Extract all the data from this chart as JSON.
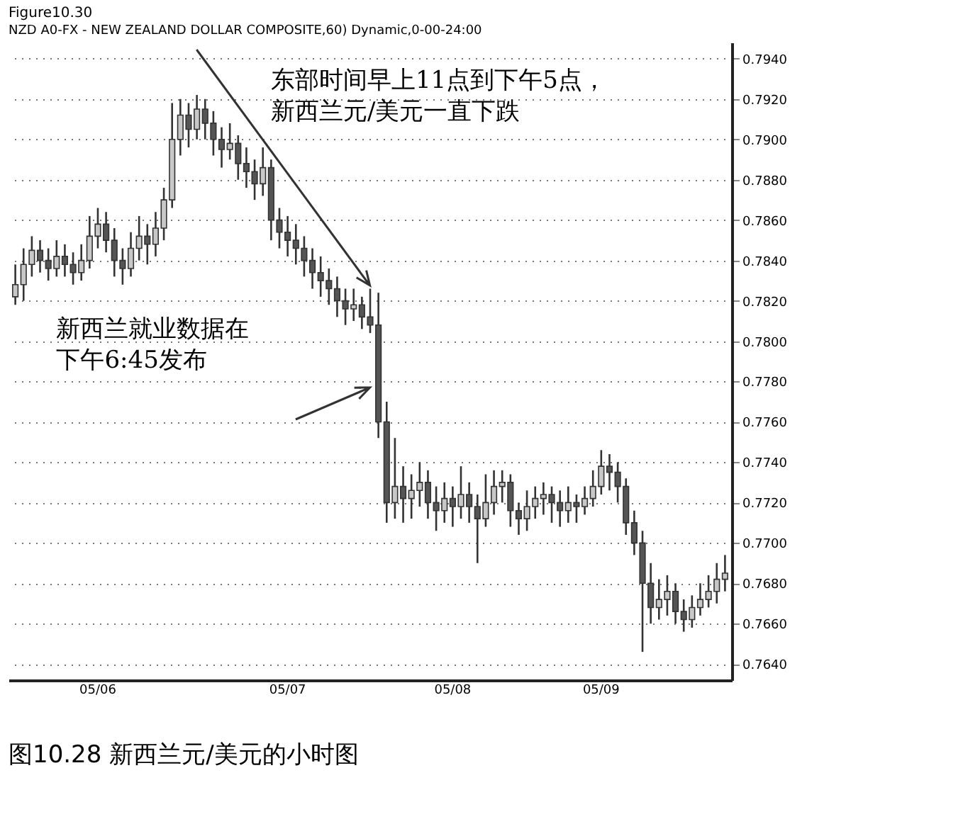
{
  "chart_data": {
    "type": "candlestick",
    "title": "Figure10.30",
    "subtitle": "NZD A0-FX - NEW ZEALAND DOLLAR COMPOSITE,60) Dynamic,0-00-24:00",
    "categories": [
      null,
      null,
      null,
      null,
      null,
      null,
      null,
      null,
      null,
      null,
      "05/06",
      null,
      null,
      null,
      null,
      null,
      null,
      null,
      null,
      null,
      null,
      null,
      null,
      null,
      null,
      null,
      null,
      null,
      null,
      null,
      null,
      null,
      null,
      "05/07",
      null,
      null,
      null,
      null,
      null,
      null,
      null,
      null,
      null,
      null,
      null,
      null,
      null,
      null,
      null,
      null,
      null,
      null,
      null,
      "05/08",
      null,
      null,
      null,
      null,
      null,
      null,
      null,
      null,
      null,
      null,
      null,
      null,
      null,
      null,
      null,
      null,
      null,
      "05/09",
      null,
      null,
      null,
      null,
      null,
      null,
      null,
      null,
      null,
      null,
      null,
      null,
      null,
      null,
      null
    ],
    "ohlc": [
      [
        0.7822,
        0.7838,
        0.7818,
        0.7828
      ],
      [
        0.7828,
        0.7846,
        0.782,
        0.7838
      ],
      [
        0.7838,
        0.7852,
        0.7832,
        0.7845
      ],
      [
        0.7845,
        0.785,
        0.7834,
        0.784
      ],
      [
        0.784,
        0.7846,
        0.783,
        0.7836
      ],
      [
        0.7836,
        0.785,
        0.7832,
        0.7842
      ],
      [
        0.7842,
        0.7848,
        0.7832,
        0.7838
      ],
      [
        0.7838,
        0.7844,
        0.7828,
        0.7834
      ],
      [
        0.7834,
        0.7848,
        0.783,
        0.784
      ],
      [
        0.784,
        0.7862,
        0.7836,
        0.7852
      ],
      [
        0.7852,
        0.7866,
        0.7846,
        0.7858
      ],
      [
        0.7858,
        0.7864,
        0.7844,
        0.785
      ],
      [
        0.785,
        0.7856,
        0.7832,
        0.784
      ],
      [
        0.784,
        0.7846,
        0.7828,
        0.7836
      ],
      [
        0.7836,
        0.7854,
        0.7832,
        0.7846
      ],
      [
        0.7846,
        0.7862,
        0.784,
        0.7852
      ],
      [
        0.7852,
        0.7858,
        0.7838,
        0.7848
      ],
      [
        0.7848,
        0.7864,
        0.7842,
        0.7856
      ],
      [
        0.7856,
        0.7876,
        0.785,
        0.787
      ],
      [
        0.787,
        0.7918,
        0.7866,
        0.79
      ],
      [
        0.79,
        0.792,
        0.7892,
        0.7912
      ],
      [
        0.7912,
        0.7918,
        0.7896,
        0.7905
      ],
      [
        0.7905,
        0.7922,
        0.79,
        0.7915
      ],
      [
        0.7915,
        0.792,
        0.79,
        0.7908
      ],
      [
        0.7908,
        0.7914,
        0.7892,
        0.79
      ],
      [
        0.79,
        0.7906,
        0.7886,
        0.7895
      ],
      [
        0.7895,
        0.7908,
        0.789,
        0.7898
      ],
      [
        0.7898,
        0.7902,
        0.788,
        0.7888
      ],
      [
        0.7888,
        0.7896,
        0.7876,
        0.7884
      ],
      [
        0.7884,
        0.789,
        0.787,
        0.7878
      ],
      [
        0.7878,
        0.7896,
        0.7872,
        0.7886
      ],
      [
        0.7886,
        0.789,
        0.785,
        0.786
      ],
      [
        0.786,
        0.7866,
        0.7846,
        0.7854
      ],
      [
        0.7854,
        0.7862,
        0.7842,
        0.785
      ],
      [
        0.785,
        0.7858,
        0.7838,
        0.7846
      ],
      [
        0.7846,
        0.7852,
        0.7832,
        0.784
      ],
      [
        0.784,
        0.7846,
        0.7826,
        0.7834
      ],
      [
        0.7834,
        0.7842,
        0.7822,
        0.783
      ],
      [
        0.783,
        0.7836,
        0.7818,
        0.7826
      ],
      [
        0.7826,
        0.7832,
        0.7812,
        0.782
      ],
      [
        0.782,
        0.7826,
        0.7808,
        0.7816
      ],
      [
        0.7816,
        0.7826,
        0.781,
        0.7818
      ],
      [
        0.7818,
        0.7822,
        0.7806,
        0.7812
      ],
      [
        0.7812,
        0.7826,
        0.7804,
        0.7808
      ],
      [
        0.7808,
        0.7824,
        0.7752,
        0.776
      ],
      [
        0.776,
        0.777,
        0.771,
        0.772
      ],
      [
        0.772,
        0.7752,
        0.7712,
        0.7728
      ],
      [
        0.7728,
        0.7738,
        0.771,
        0.7722
      ],
      [
        0.7722,
        0.7734,
        0.7712,
        0.7726
      ],
      [
        0.7726,
        0.774,
        0.7718,
        0.773
      ],
      [
        0.773,
        0.7736,
        0.7712,
        0.772
      ],
      [
        0.772,
        0.7728,
        0.7706,
        0.7716
      ],
      [
        0.7716,
        0.773,
        0.771,
        0.7722
      ],
      [
        0.7722,
        0.7728,
        0.7708,
        0.7718
      ],
      [
        0.7718,
        0.7738,
        0.7712,
        0.7724
      ],
      [
        0.7724,
        0.773,
        0.771,
        0.7718
      ],
      [
        0.7718,
        0.7724,
        0.769,
        0.7712
      ],
      [
        0.7712,
        0.7734,
        0.7708,
        0.772
      ],
      [
        0.772,
        0.7736,
        0.7714,
        0.7728
      ],
      [
        0.7728,
        0.7736,
        0.772,
        0.773
      ],
      [
        0.773,
        0.7734,
        0.7708,
        0.7716
      ],
      [
        0.7716,
        0.772,
        0.7704,
        0.7712
      ],
      [
        0.7712,
        0.7726,
        0.7706,
        0.7718
      ],
      [
        0.7718,
        0.7728,
        0.7712,
        0.7722
      ],
      [
        0.7722,
        0.773,
        0.7714,
        0.7724
      ],
      [
        0.7724,
        0.7728,
        0.771,
        0.772
      ],
      [
        0.772,
        0.7726,
        0.7708,
        0.7716
      ],
      [
        0.7716,
        0.7728,
        0.771,
        0.772
      ],
      [
        0.772,
        0.7724,
        0.771,
        0.7718
      ],
      [
        0.7718,
        0.7728,
        0.7714,
        0.7722
      ],
      [
        0.7722,
        0.7736,
        0.7718,
        0.7728
      ],
      [
        0.7728,
        0.7746,
        0.7724,
        0.7738
      ],
      [
        0.7738,
        0.7744,
        0.7726,
        0.7735
      ],
      [
        0.7735,
        0.774,
        0.772,
        0.7728
      ],
      [
        0.7728,
        0.7732,
        0.7704,
        0.771
      ],
      [
        0.771,
        0.7716,
        0.7694,
        0.77
      ],
      [
        0.77,
        0.7706,
        0.7646,
        0.768
      ],
      [
        0.768,
        0.769,
        0.766,
        0.7668
      ],
      [
        0.7668,
        0.7682,
        0.7662,
        0.7672
      ],
      [
        0.7672,
        0.7684,
        0.7664,
        0.7676
      ],
      [
        0.7676,
        0.768,
        0.766,
        0.7666
      ],
      [
        0.7666,
        0.7672,
        0.7656,
        0.7662
      ],
      [
        0.7662,
        0.7674,
        0.7658,
        0.7668
      ],
      [
        0.7668,
        0.768,
        0.7664,
        0.7672
      ],
      [
        0.7672,
        0.7684,
        0.7668,
        0.7676
      ],
      [
        0.7676,
        0.769,
        0.767,
        0.7682
      ],
      [
        0.7682,
        0.7694,
        0.7676,
        0.7685
      ]
    ],
    "ylim": [
      0.7632,
      0.7948
    ],
    "yticks": [
      {
        "value": 0.764,
        "label": "0.7640"
      },
      {
        "value": 0.766,
        "label": "0.7660"
      },
      {
        "value": 0.768,
        "label": "0.7680"
      },
      {
        "value": 0.77,
        "label": "0.7700"
      },
      {
        "value": 0.772,
        "label": "0.7720"
      },
      {
        "value": 0.774,
        "label": "0.7740"
      },
      {
        "value": 0.776,
        "label": "0.7760"
      },
      {
        "value": 0.778,
        "label": "0.7780"
      },
      {
        "value": 0.78,
        "label": "0.7800"
      },
      {
        "value": 0.782,
        "label": "0.7820"
      },
      {
        "value": 0.784,
        "label": "0.7840"
      },
      {
        "value": 0.786,
        "label": "0.7860"
      },
      {
        "value": 0.788,
        "label": "0.7880"
      },
      {
        "value": 0.79,
        "label": "0.7900"
      },
      {
        "value": 0.792,
        "label": "0.7920"
      },
      {
        "value": 0.794,
        "label": "0.7940"
      }
    ],
    "grid": "y",
    "annotations": [
      "东部时间早上11点到下午5点，新西兰元/美元一直下跌",
      "新西兰就业数据在下午6:45发布",
      "图10.28 新西兰元/美元的小时图"
    ]
  }
}
